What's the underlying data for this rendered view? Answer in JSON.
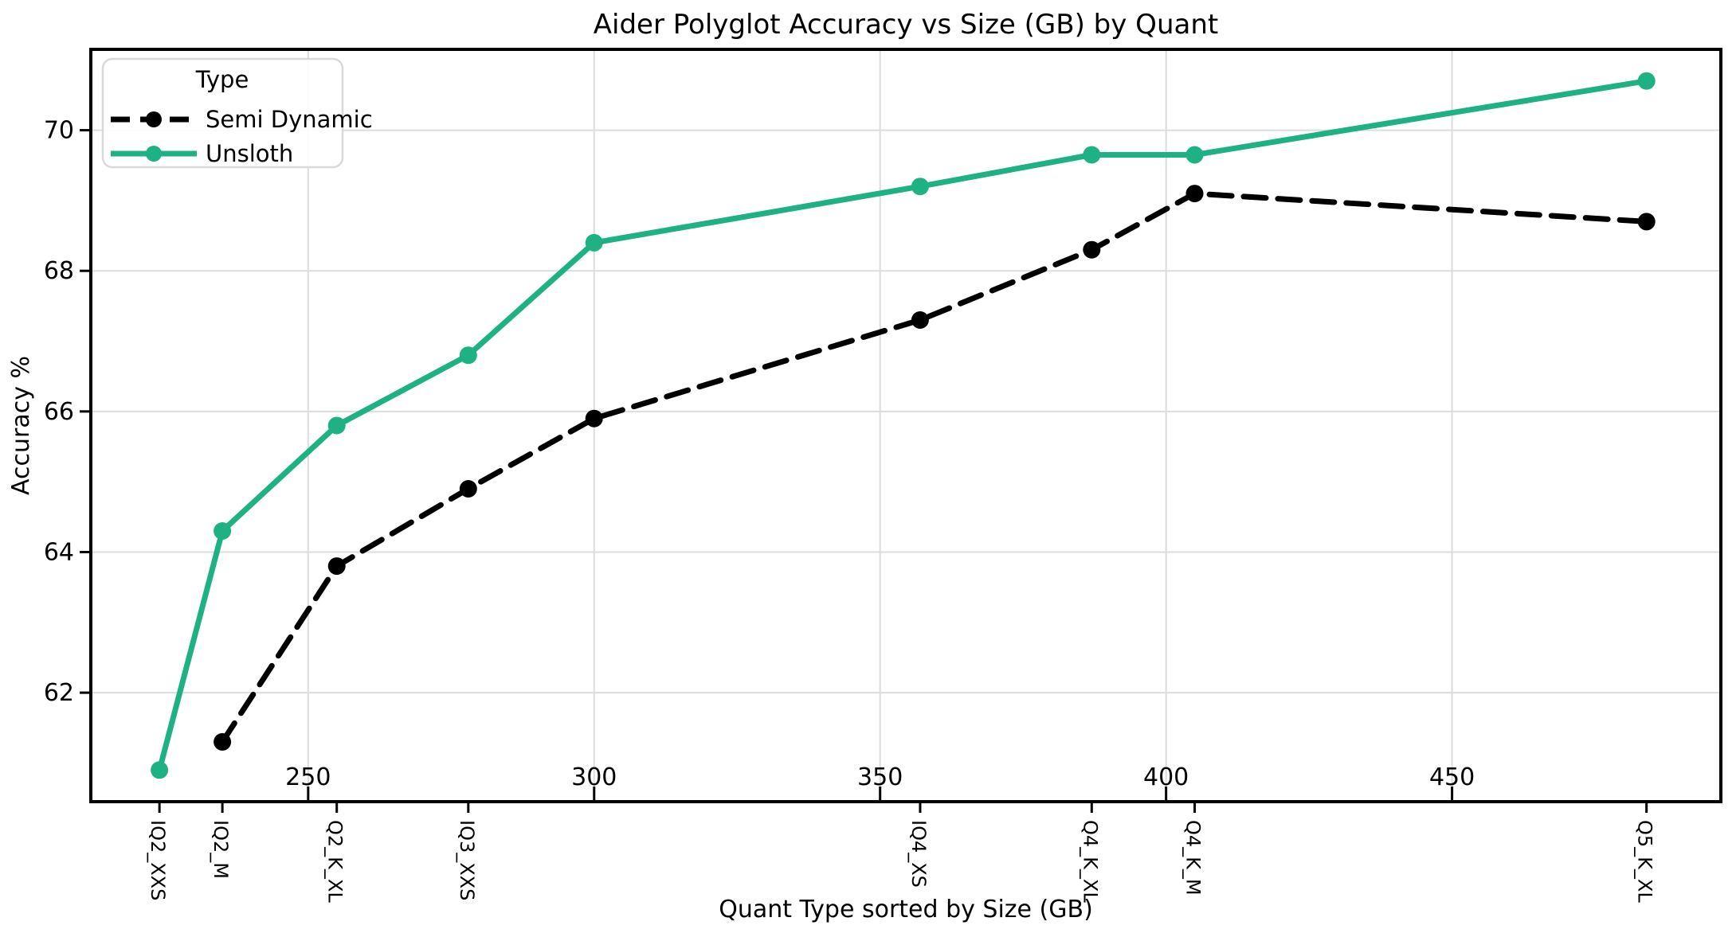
{
  "colors": {
    "background": "#ffffff",
    "grid": "#dcdcdc",
    "spine": "#000000",
    "text": "#000000",
    "semi_dynamic_line": "#000000",
    "unsloth_line": "#1db183",
    "legend_border": "#d9d9d9",
    "legend_background": "#ffffff"
  },
  "chart_data": {
    "type": "line",
    "title": "Aider Polyglot Accuracy vs Size (GB) by Quant",
    "xlabel": "Quant Type sorted by Size (GB)",
    "ylabel": "Accuracy %",
    "grid": true,
    "xlim": [
      212,
      497
    ],
    "ylim": [
      60.45,
      71.15
    ],
    "x_ticks_gb": [
      250,
      300,
      350,
      400,
      450
    ],
    "y_ticks": [
      62,
      64,
      66,
      68,
      70
    ],
    "legend": {
      "title": "Type",
      "position": "upper left"
    },
    "category_ticks": [
      {
        "label": "IQ2_XXS",
        "size_gb": 224
      },
      {
        "label": "IQ2_M",
        "size_gb": 235
      },
      {
        "label": "Q2_K_XL",
        "size_gb": 255
      },
      {
        "label": "IQ3_XXS",
        "size_gb": 278
      },
      {
        "label": "IQ4_XS",
        "size_gb": 357
      },
      {
        "label": "Q4_K_XL",
        "size_gb": 387
      },
      {
        "label": "Q4_K_M",
        "size_gb": 405
      },
      {
        "label": "Q5_K_XL",
        "size_gb": 484
      }
    ],
    "series": [
      {
        "name": "Semi Dynamic",
        "color": "#000000",
        "style": "dashed",
        "marker": "circle",
        "points": [
          {
            "quant": "IQ2_M",
            "size_gb": 235,
            "accuracy": 61.3
          },
          {
            "quant": "Q2_K_XL",
            "size_gb": 255,
            "accuracy": 63.8
          },
          {
            "quant": "IQ3_XXS",
            "size_gb": 278,
            "accuracy": 64.9
          },
          {
            "quant": "",
            "size_gb": 300,
            "accuracy": 65.9
          },
          {
            "quant": "IQ4_XS",
            "size_gb": 357,
            "accuracy": 67.3
          },
          {
            "quant": "Q4_K_XL",
            "size_gb": 387,
            "accuracy": 68.3
          },
          {
            "quant": "Q4_K_M",
            "size_gb": 405,
            "accuracy": 69.1
          },
          {
            "quant": "Q5_K_XL",
            "size_gb": 484,
            "accuracy": 68.7
          }
        ]
      },
      {
        "name": "Unsloth",
        "color": "#1db183",
        "style": "solid",
        "marker": "circle",
        "points": [
          {
            "quant": "IQ2_XXS",
            "size_gb": 224,
            "accuracy": 60.9
          },
          {
            "quant": "IQ2_M",
            "size_gb": 235,
            "accuracy": 64.3
          },
          {
            "quant": "Q2_K_XL",
            "size_gb": 255,
            "accuracy": 65.8
          },
          {
            "quant": "IQ3_XXS",
            "size_gb": 278,
            "accuracy": 66.8
          },
          {
            "quant": "",
            "size_gb": 300,
            "accuracy": 68.4
          },
          {
            "quant": "IQ4_XS",
            "size_gb": 357,
            "accuracy": 69.2
          },
          {
            "quant": "Q4_K_XL",
            "size_gb": 387,
            "accuracy": 69.65
          },
          {
            "quant": "Q4_K_M",
            "size_gb": 405,
            "accuracy": 69.65
          },
          {
            "quant": "Q5_K_XL",
            "size_gb": 484,
            "accuracy": 70.7
          }
        ]
      }
    ]
  }
}
